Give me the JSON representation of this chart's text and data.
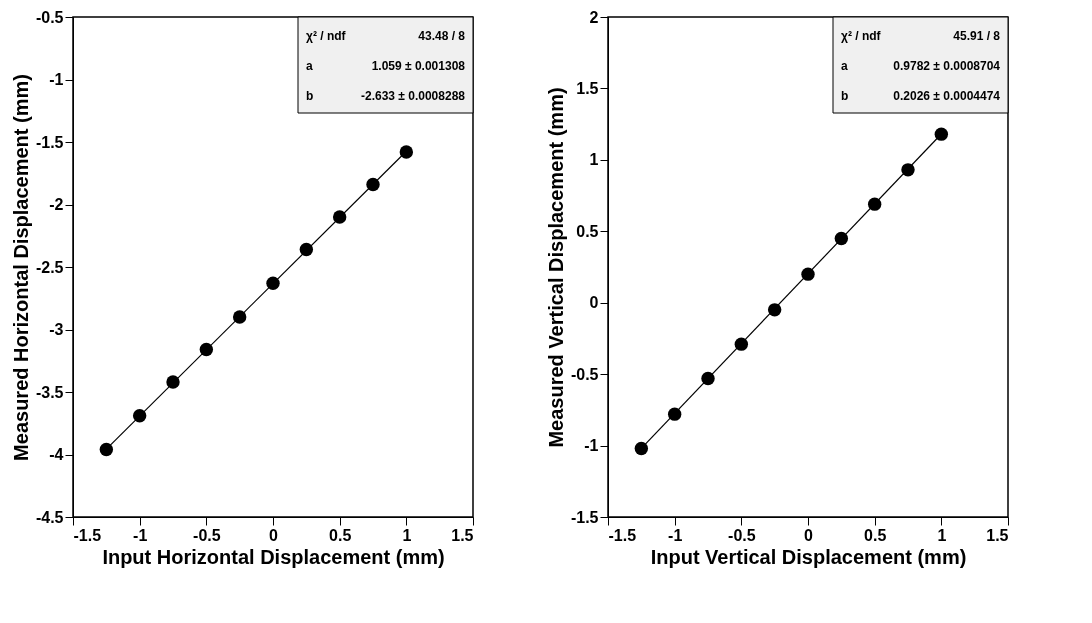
{
  "chart_data": [
    {
      "type": "scatter",
      "xlabel": "Input Horizontal Displacement (mm)",
      "ylabel": "Measured Horizontal Displacement (mm)",
      "xlim": [
        -1.5,
        1.5
      ],
      "xticks": [
        -1.5,
        -1,
        -0.5,
        0,
        0.5,
        1,
        1.5
      ],
      "ylim": [
        -4.5,
        -0.5
      ],
      "yticks": [
        -4.5,
        -4,
        -3.5,
        -3,
        -2.5,
        -2,
        -1.5,
        -1,
        -0.5
      ],
      "grid": false,
      "marker": "circle",
      "series": [
        {
          "color": "#000000",
          "x": [
            -1.25,
            -1,
            -0.75,
            -0.5,
            -0.25,
            0,
            0.25,
            0.5,
            0.75,
            1
          ],
          "values": [
            -3.96,
            -3.69,
            -3.42,
            -3.16,
            -2.9,
            -2.63,
            -2.36,
            -2.1,
            -1.84,
            -1.58
          ]
        },
        {
          "type": "line",
          "marker": "none",
          "color": "#000000",
          "x": [
            -1.25,
            1
          ],
          "values": [
            -3.957,
            -1.574
          ]
        }
      ],
      "annotations": [
        "χ² / ndf",
        "43.48 / 8",
        "a",
        "1.059 ± 0.001308",
        "b",
        "-2.633 ± 0.0008288"
      ]
    },
    {
      "type": "scatter",
      "xlabel": "Input Vertical Displacement (mm)",
      "ylabel": "Measured Vertical Displacement (mm)",
      "xlim": [
        -1.5,
        1.5
      ],
      "xticks": [
        -1.5,
        -1,
        -0.5,
        0,
        0.5,
        1,
        1.5
      ],
      "ylim": [
        -1.5,
        2
      ],
      "yticks": [
        -1.5,
        -1,
        -0.5,
        0,
        0.5,
        1,
        1.5,
        2
      ],
      "grid": false,
      "marker": "circle",
      "series": [
        {
          "color": "#000000",
          "x": [
            -1.25,
            -1,
            -0.75,
            -0.5,
            -0.25,
            0,
            0.25,
            0.5,
            0.75,
            1
          ],
          "values": [
            -1.02,
            -0.78,
            -0.53,
            -0.29,
            -0.05,
            0.2,
            0.45,
            0.69,
            0.93,
            1.18
          ]
        },
        {
          "type": "line",
          "marker": "none",
          "color": "#000000",
          "x": [
            -1.25,
            1
          ],
          "values": [
            -1.02,
            1.181
          ]
        }
      ],
      "annotations": [
        "χ² / ndf",
        "45.91 / 8",
        "a",
        "0.9782 ± 0.0008704",
        "b",
        "0.2026 ± 0.0004474"
      ]
    }
  ]
}
